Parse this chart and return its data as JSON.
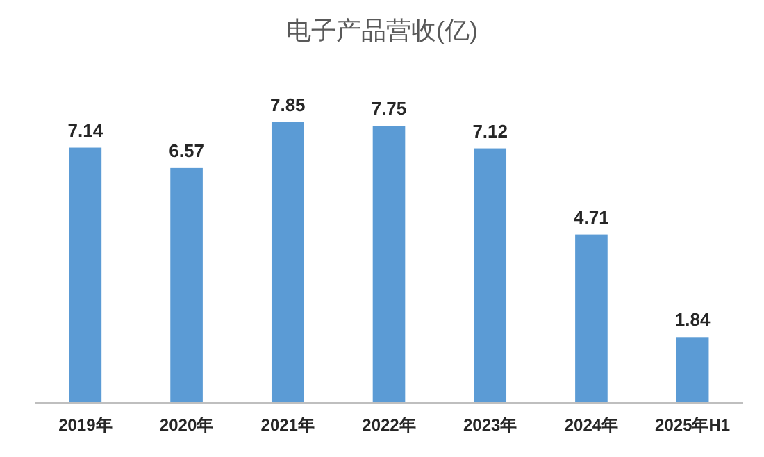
{
  "chart_data": {
    "type": "bar",
    "title": "电子产品营收(亿)",
    "categories": [
      "2019年",
      "2020年",
      "2021年",
      "2022年",
      "2023年",
      "2024年",
      "2025年H1"
    ],
    "values": [
      7.14,
      6.57,
      7.85,
      7.75,
      7.12,
      4.71,
      1.84
    ],
    "color": "#5b9bd5",
    "data_labels": true
  }
}
